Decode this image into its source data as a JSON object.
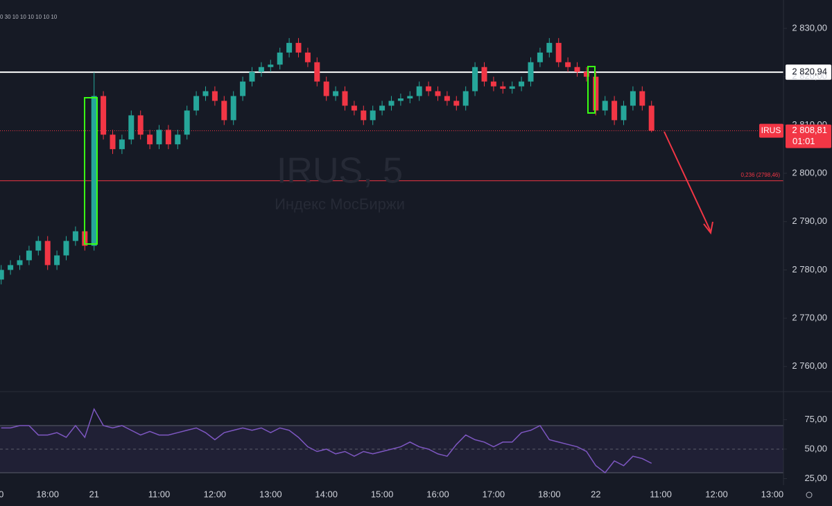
{
  "chart_data": {
    "type": "candlestick",
    "legend_text": "0 30 10 10 10 10 10 10",
    "watermark": "IRUS, 5",
    "subtitle": "Индекс МосБиржи",
    "categories": [
      "0",
      null,
      null,
      null,
      null,
      "18:00",
      null,
      null,
      null,
      null,
      "21",
      null,
      null,
      null,
      null,
      null,
      null,
      "11:00",
      null,
      null,
      null,
      null,
      null,
      "12:00",
      null,
      null,
      null,
      null,
      null,
      "13:00",
      null,
      null,
      null,
      null,
      null,
      "14:00",
      null,
      null,
      null,
      null,
      null,
      "15:00",
      null,
      null,
      null,
      null,
      null,
      "16:00",
      null,
      null,
      null,
      null,
      null,
      "17:00",
      null,
      null,
      null,
      null,
      null,
      "18:00",
      null,
      null,
      null,
      null,
      "22",
      null,
      null,
      null,
      null,
      null,
      null,
      "11:00",
      null,
      null,
      null,
      null,
      null,
      "12:00",
      null,
      null,
      null,
      null,
      null,
      "13:00"
    ],
    "open": [
      2778,
      2780,
      2781,
      2782,
      2784,
      2786,
      2781,
      2783,
      2786,
      2788,
      2785,
      2816,
      2808,
      2805,
      2807,
      2812,
      2808,
      2806,
      2809,
      2806,
      2808,
      2813,
      2816,
      2817,
      2815,
      2811,
      2816,
      2819,
      2821,
      2822,
      2822.5,
      2825,
      2827,
      2825,
      2823,
      2819,
      2816,
      2817,
      2814,
      2813,
      2811,
      2813,
      2814,
      2815,
      2815.5,
      2816,
      2818,
      2817,
      2816,
      2815,
      2814,
      2817,
      2822,
      2819,
      2818,
      2817.5,
      2818,
      2819,
      2823,
      2825,
      2827,
      2823,
      2822,
      2821,
      2820,
      2813,
      2815,
      2811,
      2814,
      2817,
      2814,
      null,
      null,
      null,
      null,
      null,
      null,
      null,
      null,
      null,
      null,
      null,
      null,
      null
    ],
    "high": [
      2781,
      2782,
      2783,
      2785,
      2787,
      2787,
      2784,
      2787,
      2789,
      2789,
      2820.9,
      2817,
      2809,
      2808,
      2813,
      2813,
      2809,
      2810,
      2810,
      2809,
      2814,
      2817,
      2818,
      2818,
      2816,
      2817,
      2820,
      2822,
      2823,
      2823.5,
      2826,
      2828,
      2828,
      2826,
      2824,
      2820,
      2818,
      2818,
      2815,
      2814,
      2814,
      2815,
      2816,
      2816.5,
      2817,
      2819,
      2819,
      2818,
      2817,
      2816,
      2818,
      2823,
      2823,
      2820,
      2819,
      2819,
      2820,
      2824,
      2826,
      2828,
      2828,
      2824,
      2823,
      2822,
      2821,
      2816,
      2816,
      2815,
      2818,
      2818,
      2815,
      null,
      null,
      null,
      null,
      null,
      null,
      null,
      null,
      null,
      null,
      null,
      null,
      null
    ],
    "low": [
      2777,
      2779,
      2780,
      2781,
      2783,
      2780,
      2780,
      2782,
      2785,
      2784,
      2784,
      2807,
      2804,
      2804,
      2806,
      2807,
      2805,
      2805,
      2805,
      2805,
      2807,
      2812,
      2815,
      2814,
      2810,
      2810,
      2815,
      2818,
      2820,
      2821,
      2821.5,
      2824,
      2824,
      2822,
      2818,
      2815,
      2815,
      2813,
      2812,
      2810,
      2810,
      2812,
      2813,
      2814,
      2814.5,
      2815,
      2816,
      2815,
      2814,
      2813,
      2813,
      2816,
      2818,
      2817,
      2816.5,
      2816.5,
      2817,
      2818,
      2822,
      2824,
      2822,
      2821,
      2820,
      2819,
      2812,
      2812,
      2810,
      2810,
      2813,
      2813,
      2808.5,
      null,
      null,
      null,
      null,
      null,
      null,
      null,
      null,
      null,
      null,
      null,
      null,
      null
    ],
    "close": [
      2780,
      2781,
      2782,
      2784,
      2786,
      2781,
      2783,
      2786,
      2788,
      2785,
      2816,
      2808,
      2805,
      2807,
      2812,
      2808,
      2806,
      2809,
      2806,
      2808,
      2813,
      2816,
      2817,
      2815,
      2811,
      2816,
      2819,
      2821,
      2822,
      2822.5,
      2825,
      2827,
      2825,
      2823,
      2819,
      2816,
      2817,
      2814,
      2813,
      2811,
      2813,
      2814,
      2815,
      2815.5,
      2816,
      2818,
      2817,
      2816,
      2815,
      2814,
      2817,
      2822,
      2819,
      2818,
      2817.5,
      2818,
      2819,
      2823,
      2825,
      2827,
      2823,
      2822,
      2821,
      2820,
      2813,
      2815,
      2811,
      2814,
      2817,
      2814,
      2808.81,
      null,
      null,
      null,
      null,
      null,
      null,
      null,
      null,
      null,
      null,
      null,
      null,
      null
    ],
    "up_color": "#26a69a",
    "down_color": "#f23645",
    "ylim": [
      2754.8,
      2835.88
    ],
    "yticks": [
      {
        "value": 2760,
        "label": "2 760,00"
      },
      {
        "value": 2770,
        "label": "2 770,00"
      },
      {
        "value": 2780,
        "label": "2 780,00"
      },
      {
        "value": 2790,
        "label": "2 790,00"
      },
      {
        "value": 2800,
        "label": "2 800,00"
      },
      {
        "value": 2810,
        "label": "2 810,00"
      },
      {
        "value": 2820,
        "label": "2 820,00"
      },
      {
        "value": 2830,
        "label": "2 830,00"
      }
    ],
    "levels": [
      {
        "value": 2820.94,
        "label": "2 820,94",
        "color": "#ffffff"
      },
      {
        "value": 2798.46,
        "label": "0,236 (2798,46)",
        "color": "#f23645"
      }
    ],
    "last_price": {
      "symbol": "IRUS",
      "value": 2808.81,
      "label": "2 808,81",
      "countdown": "01:01",
      "color": "#f23645"
    },
    "rsi": {
      "color": "#7e57c2",
      "values": [
        68,
        68,
        70,
        70,
        62,
        62,
        64,
        60,
        70,
        60,
        84,
        70,
        68,
        70,
        66,
        62,
        65,
        62,
        62,
        64,
        66,
        68,
        64,
        58,
        64,
        66,
        68,
        66,
        68,
        64,
        68,
        66,
        60,
        52,
        48,
        50,
        46,
        48,
        44,
        48,
        46,
        48,
        50,
        52,
        56,
        52,
        50,
        46,
        44,
        54,
        62,
        58,
        56,
        52,
        56,
        56,
        64,
        66,
        70,
        58,
        56,
        54,
        52,
        48,
        36,
        30,
        40,
        36,
        44,
        42,
        38,
        null,
        null,
        null,
        null,
        null,
        null,
        null,
        null,
        null,
        null,
        null,
        null,
        null
      ],
      "ylim": [
        19.4,
        98.8
      ],
      "yticks": [
        {
          "value": 25,
          "label": "25,00"
        },
        {
          "value": 50,
          "label": "50,00"
        },
        {
          "value": 75,
          "label": "75,00"
        }
      ],
      "band": [
        30,
        70
      ],
      "midline": 50
    }
  }
}
